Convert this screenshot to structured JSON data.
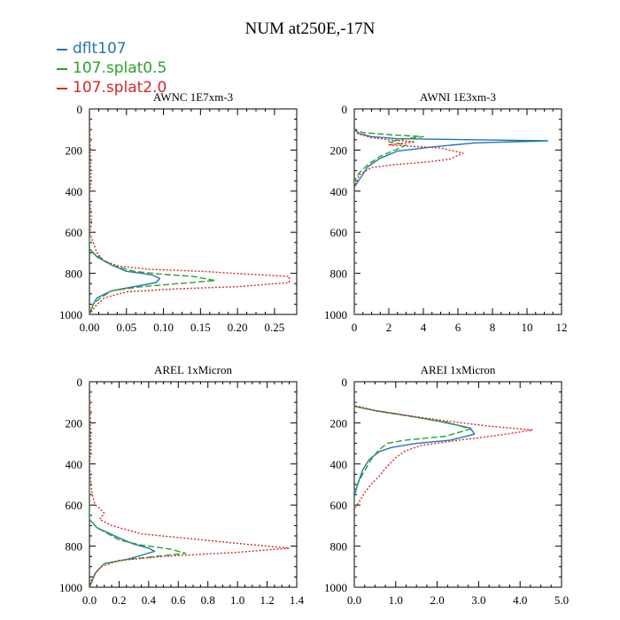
{
  "figure": {
    "title": "NUM at250E,-17N"
  },
  "legend": [
    {
      "name": "dflt107",
      "color": "#1f77b4",
      "dash": "solid"
    },
    {
      "name": "107.splat0.5",
      "color": "#2ca02c",
      "dash": "dashed"
    },
    {
      "name": "107.splat2.0",
      "color": "#d62728",
      "dash": "dotted"
    }
  ],
  "chart_data": [
    {
      "type": "line",
      "title": "AWNC  1E7xm-3",
      "xlim": [
        0,
        0.28
      ],
      "ylim": [
        1000,
        0
      ],
      "xticks": [
        0,
        0.05,
        0.1,
        0.15,
        0.2,
        0.25
      ],
      "xtick_labels": [
        "0.00",
        "0.05",
        "0.10",
        "0.15",
        "0.20",
        "0.25"
      ],
      "yticks": [
        0,
        200,
        400,
        600,
        800,
        1000
      ],
      "ytick_labels": [
        "0",
        "200",
        "400",
        "600",
        "800",
        "1000"
      ],
      "series": [
        {
          "name": "dflt107",
          "x": [
            0,
            0,
            0.005,
            0.01,
            0.03,
            0.05,
            0.07,
            0.085,
            0.095,
            0.09,
            0.06,
            0.03,
            0.01,
            0.005,
            0
          ],
          "y": [
            0,
            680,
            700,
            720,
            760,
            790,
            800,
            808,
            825,
            845,
            865,
            885,
            920,
            950,
            1000
          ]
        },
        {
          "name": "107.splat0.5",
          "x": [
            0,
            0,
            0.005,
            0.015,
            0.03,
            0.06,
            0.1,
            0.14,
            0.17,
            0.12,
            0.07,
            0.03,
            0.015,
            0.005,
            0
          ],
          "y": [
            0,
            680,
            700,
            725,
            760,
            790,
            805,
            815,
            835,
            850,
            865,
            885,
            920,
            950,
            1000
          ]
        },
        {
          "name": "107.splat2.0",
          "x": [
            0,
            0.002,
            0,
            0.003,
            0,
            0.01,
            0.02,
            0.04,
            0.08,
            0.15,
            0.22,
            0.27,
            0.27,
            0.2,
            0.12,
            0.05,
            0.02,
            0.008,
            0
          ],
          "y": [
            0,
            350,
            420,
            560,
            600,
            700,
            740,
            765,
            780,
            790,
            805,
            815,
            845,
            865,
            875,
            890,
            920,
            960,
            1000
          ]
        }
      ]
    },
    {
      "type": "line",
      "title": "AWNI  1E3xm-3",
      "xlim": [
        0,
        12
      ],
      "ylim": [
        1000,
        0
      ],
      "xticks": [
        0,
        2,
        4,
        6,
        8,
        10,
        12
      ],
      "xtick_labels": [
        "0",
        "2",
        "4",
        "6",
        "8",
        "10",
        "12"
      ],
      "yticks": [
        0,
        200,
        400,
        600,
        800,
        1000
      ],
      "ytick_labels": [
        "0",
        "200",
        "400",
        "600",
        "800",
        "1000"
      ],
      "series": [
        {
          "name": "dflt107",
          "x": [
            0,
            0,
            0.3,
            1,
            2.5,
            7,
            11.2,
            7,
            4.5,
            2.5,
            1.5,
            0.8,
            0.4,
            0,
            0
          ],
          "y": [
            0,
            100,
            120,
            135,
            145,
            150,
            155,
            165,
            185,
            205,
            240,
            280,
            330,
            380,
            1000
          ]
        },
        {
          "name": "107.splat0.5",
          "x": [
            0,
            0,
            0.5,
            2,
            4,
            3,
            2,
            3,
            2.5,
            1.5,
            0.8,
            0.3,
            0,
            0
          ],
          "y": [
            0,
            100,
            115,
            125,
            135,
            145,
            160,
            175,
            195,
            230,
            270,
            310,
            350,
            1000
          ]
        },
        {
          "name": "107.splat2.0",
          "x": [
            0,
            0,
            0.2,
            1,
            2,
            3.5,
            2,
            5,
            6.3,
            5.5,
            4,
            2.5,
            1,
            0.3,
            0,
            0
          ],
          "y": [
            0,
            100,
            120,
            140,
            150,
            160,
            175,
            190,
            215,
            245,
            260,
            270,
            285,
            320,
            380,
            1000
          ]
        }
      ]
    },
    {
      "type": "line",
      "title": "AREL  1xMicron",
      "xlim": [
        0,
        1.4
      ],
      "ylim": [
        1000,
        0
      ],
      "xticks": [
        0,
        0.2,
        0.4,
        0.6,
        0.8,
        1.0,
        1.2,
        1.4
      ],
      "xtick_labels": [
        "0.0",
        "0.2",
        "0.4",
        "0.6",
        "0.8",
        "1.0",
        "1.2",
        "1.4"
      ],
      "yticks": [
        0,
        200,
        400,
        600,
        800,
        1000
      ],
      "ytick_labels": [
        "0",
        "200",
        "400",
        "600",
        "800",
        "1000"
      ],
      "series": [
        {
          "name": "dflt107",
          "x": [
            0,
            0,
            0.05,
            0.2,
            0.3,
            0.4,
            0.44,
            0.35,
            0.25,
            0.1,
            0.04,
            0
          ],
          "y": [
            0,
            670,
            710,
            760,
            790,
            810,
            825,
            845,
            865,
            885,
            930,
            1000
          ]
        },
        {
          "name": "107.splat0.5",
          "x": [
            0,
            0,
            0.05,
            0.2,
            0.35,
            0.55,
            0.65,
            0.45,
            0.25,
            0.1,
            0.04,
            0
          ],
          "y": [
            0,
            670,
            710,
            770,
            795,
            815,
            835,
            850,
            865,
            885,
            930,
            1000
          ]
        },
        {
          "name": "107.splat2.0",
          "x": [
            0,
            0.01,
            0,
            0.01,
            0.02,
            0.03,
            0.04,
            0.06,
            0.1,
            0.07,
            0.15,
            0.35,
            0.7,
            1.05,
            1.35,
            1.0,
            0.5,
            0.2,
            0.08,
            0.02,
            0
          ],
          "y": [
            0,
            330,
            400,
            500,
            550,
            580,
            600,
            610,
            640,
            670,
            700,
            740,
            765,
            790,
            810,
            830,
            850,
            870,
            900,
            950,
            1000
          ]
        }
      ]
    },
    {
      "type": "line",
      "title": "AREI  1xMicron",
      "xlim": [
        0,
        5
      ],
      "ylim": [
        1000,
        0
      ],
      "xticks": [
        0,
        1,
        2,
        3,
        4,
        5
      ],
      "xtick_labels": [
        "0.0",
        "1.0",
        "2.0",
        "3.0",
        "4.0",
        "5.0"
      ],
      "yticks": [
        0,
        200,
        400,
        600,
        800,
        1000
      ],
      "ytick_labels": [
        "0",
        "200",
        "400",
        "600",
        "800",
        "1000"
      ],
      "series": [
        {
          "name": "dflt107",
          "x": [
            0,
            0,
            0.5,
            1.3,
            2.1,
            2.8,
            2.9,
            2.3,
            1.5,
            0.9,
            0.6,
            0.35,
            0.2,
            0.08,
            0,
            0
          ],
          "y": [
            0,
            120,
            140,
            165,
            195,
            225,
            255,
            285,
            300,
            320,
            340,
            380,
            430,
            500,
            560,
            1000
          ]
        },
        {
          "name": "107.splat0.5",
          "x": [
            0,
            0,
            0.6,
            1.4,
            2.3,
            2.8,
            2.2,
            1.2,
            0.8,
            0.6,
            0.4,
            0.2,
            0,
            0
          ],
          "y": [
            0,
            120,
            145,
            170,
            200,
            230,
            265,
            285,
            300,
            330,
            380,
            450,
            530,
            1000
          ]
        },
        {
          "name": "107.splat2.0",
          "x": [
            0,
            0,
            0.5,
            1.3,
            2.2,
            3.2,
            4.3,
            3.5,
            2.5,
            1.6,
            1.2,
            1.0,
            0.8,
            0.6,
            0.4,
            0.25,
            0.1,
            0,
            0
          ],
          "y": [
            0,
            115,
            140,
            165,
            190,
            215,
            235,
            260,
            285,
            310,
            340,
            370,
            410,
            460,
            500,
            540,
            590,
            620,
            1000
          ]
        }
      ]
    }
  ]
}
